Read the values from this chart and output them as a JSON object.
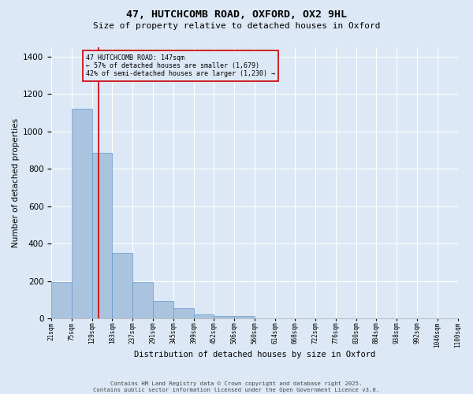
{
  "title_line1": "47, HUTCHCOMB ROAD, OXFORD, OX2 9HL",
  "title_line2": "Size of property relative to detached houses in Oxford",
  "xlabel": "Distribution of detached houses by size in Oxford",
  "ylabel": "Number of detached properties",
  "categories": [
    "21sqm",
    "75sqm",
    "129sqm",
    "183sqm",
    "237sqm",
    "291sqm",
    "345sqm",
    "399sqm",
    "452sqm",
    "506sqm",
    "560sqm",
    "614sqm",
    "668sqm",
    "722sqm",
    "776sqm",
    "830sqm",
    "884sqm",
    "938sqm",
    "992sqm",
    "1046sqm",
    "1100sqm"
  ],
  "bar_values": [
    193,
    1120,
    885,
    350,
    195,
    93,
    57,
    23,
    15,
    15,
    0,
    0,
    0,
    0,
    0,
    0,
    0,
    0,
    0,
    0
  ],
  "bar_color": "#aac4e0",
  "bar_edgecolor": "#6699cc",
  "annotation_text": "47 HUTCHCOMB ROAD: 147sqm\n← 57% of detached houses are smaller (1,679)\n42% of semi-detached houses are larger (1,230) →",
  "vline_color": "#cc0000",
  "annotation_box_edgecolor": "#cc0000",
  "background_color": "#dce8f5",
  "grid_color": "#ffffff",
  "footer_line1": "Contains HM Land Registry data © Crown copyright and database right 2025.",
  "footer_line2": "Contains public sector information licensed under the Open Government Licence v3.0.",
  "ylim_max": 1450,
  "yticks": [
    0,
    200,
    400,
    600,
    800,
    1000,
    1200,
    1400
  ]
}
